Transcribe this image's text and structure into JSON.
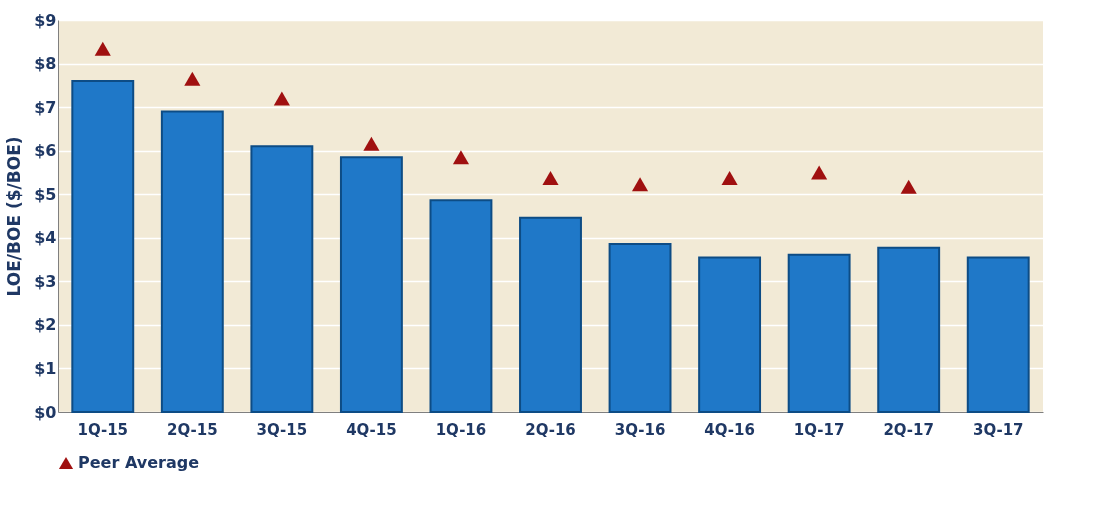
{
  "chart_data": {
    "type": "bar",
    "ylabel": "LOE/BOE ($/BOE)",
    "categories": [
      "1Q-15",
      "2Q-15",
      "3Q-15",
      "4Q-15",
      "1Q-16",
      "2Q-16",
      "3Q-16",
      "4Q-16",
      "1Q-17",
      "2Q-17",
      "3Q-17"
    ],
    "series": [
      {
        "color": "#1f78c8",
        "values": [
          7.6,
          6.9,
          6.1,
          5.85,
          4.86,
          4.46,
          3.86,
          3.55,
          3.61,
          3.77,
          3.55
        ]
      },
      {
        "type": "scatter",
        "name": "Peer Average",
        "color": "#a01010",
        "marker": "triangle",
        "values": [
          8.34,
          7.65,
          7.2,
          6.16,
          5.85,
          5.37,
          5.23,
          5.37,
          5.5,
          5.17,
          null
        ]
      }
    ],
    "ylim": [
      0,
      9
    ],
    "yticks": [
      {
        "value": 0,
        "label": "$0"
      },
      {
        "value": 1,
        "label": "$1"
      },
      {
        "value": 2,
        "label": "$2"
      },
      {
        "value": 3,
        "label": "$3"
      },
      {
        "value": 4,
        "label": "$4"
      },
      {
        "value": 5,
        "label": "$5"
      },
      {
        "value": 6,
        "label": "$6"
      },
      {
        "value": 7,
        "label": "$7"
      },
      {
        "value": 8,
        "label": "$8"
      },
      {
        "value": 9,
        "label": "$9"
      }
    ],
    "grid": "y",
    "legend": "bottom"
  }
}
